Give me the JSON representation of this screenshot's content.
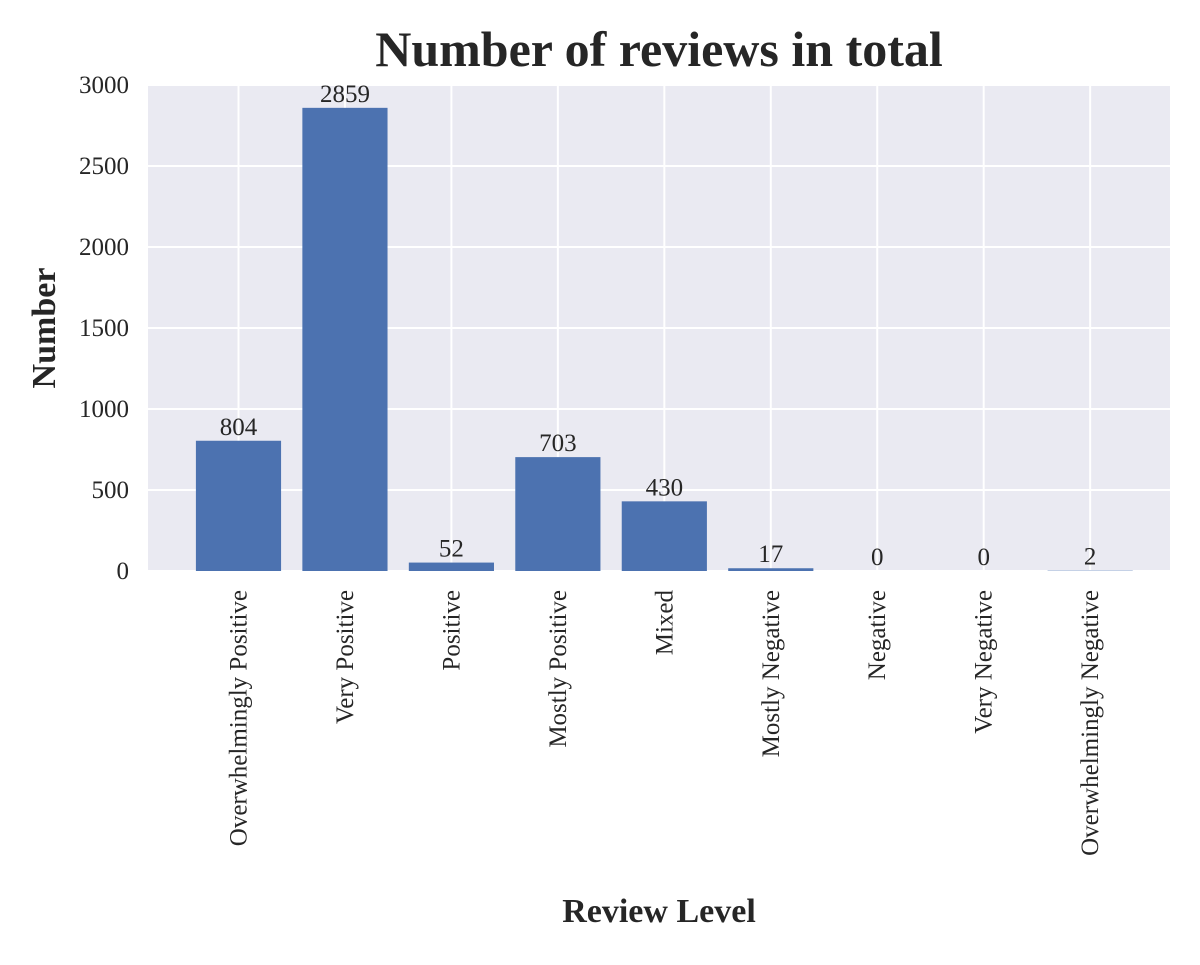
{
  "chart_data": {
    "type": "bar",
    "title": "Number of reviews in total",
    "xlabel": "Review Level",
    "ylabel": "Number",
    "categories": [
      "Overwhelmingly Positive",
      "Very Positive",
      "Positive",
      "Mostly Positive",
      "Mixed",
      "Mostly Negative",
      "Negative",
      "Very Negative",
      "Overwhelmingly Negative"
    ],
    "values": [
      804,
      2859,
      52,
      703,
      430,
      17,
      0,
      0,
      2
    ],
    "ylim": [
      0,
      3000
    ],
    "yticks": [
      "0",
      "500",
      "1000",
      "1500",
      "2000",
      "2500",
      "3000"
    ],
    "grid": true,
    "bar_color": "#4c72b0",
    "plot_background": "#eaeaf2",
    "grid_color": "#ffffff"
  }
}
